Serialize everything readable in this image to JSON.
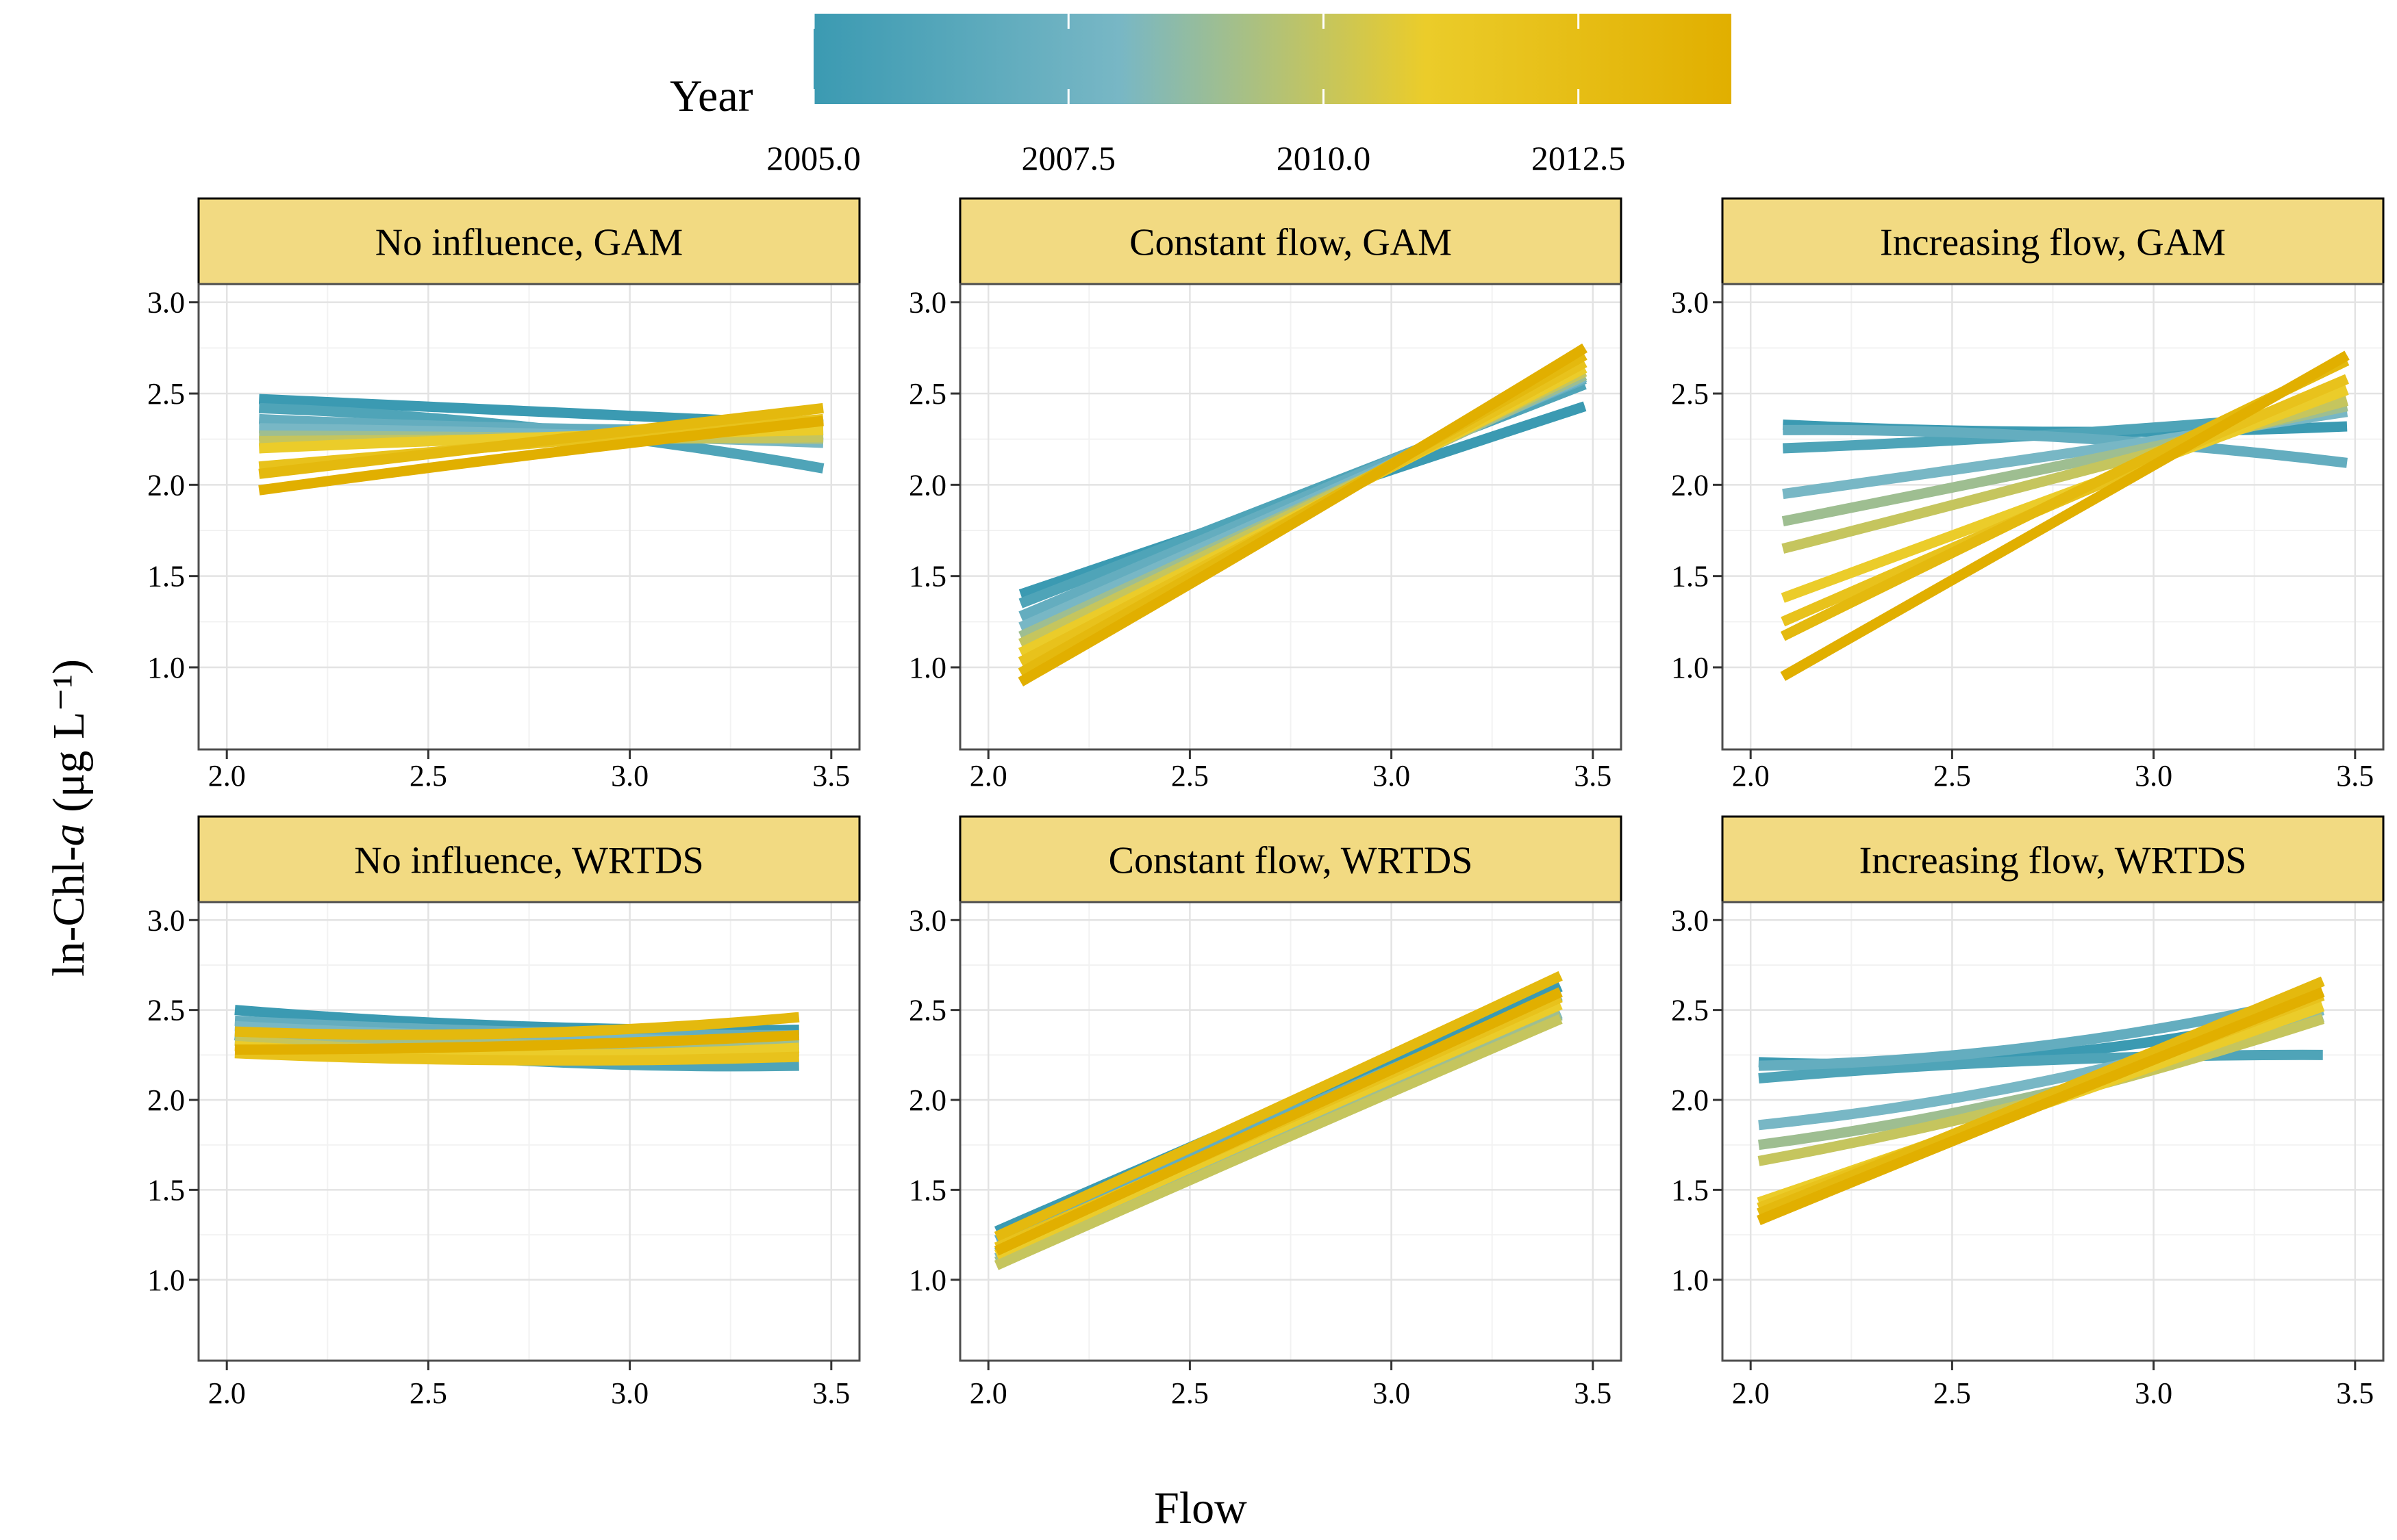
{
  "chart_data": {
    "type": "line",
    "legend": {
      "title": "Year",
      "placement": "top",
      "range": [
        2005,
        2014
      ],
      "ticks": [
        2005.0,
        2007.5,
        2010.0,
        2012.5
      ],
      "tick_labels": [
        "2005.0",
        "2007.5",
        "2010.0",
        "2012.5"
      ],
      "colors": [
        "#3B9AB2",
        "#78B7C5",
        "#EBCC2A",
        "#E1AF00"
      ]
    },
    "xlabel": "Flow",
    "ylabel": "ln-Chl-",
    "ylabel_italic": "a",
    "ylabel_units": " (μg L⁻¹)",
    "xlim": [
      1.93,
      3.57
    ],
    "ylim": [
      0.55,
      3.1
    ],
    "xticks": [
      2.0,
      2.5,
      3.0,
      3.5
    ],
    "xtick_labels": [
      "2.0",
      "2.5",
      "3.0",
      "3.5"
    ],
    "yticks": [
      1.0,
      1.5,
      2.0,
      2.5,
      3.0
    ],
    "ytick_labels": [
      "1.0",
      "1.5",
      "2.0",
      "2.5",
      "3.0"
    ],
    "grid": true,
    "strip_color": "#F2DA82",
    "panels": [
      {
        "title": "No influence, GAM",
        "x": [
          2.08,
          2.78,
          3.48
        ],
        "series": [
          {
            "year": 2005,
            "y": [
              2.47,
              2.4,
              2.33
            ]
          },
          {
            "year": 2006,
            "y": [
              2.42,
              2.31,
              2.09
            ]
          },
          {
            "year": 2007,
            "y": [
              2.36,
              2.31,
              2.3
            ]
          },
          {
            "year": 2008,
            "y": [
              2.31,
              2.28,
              2.23
            ]
          },
          {
            "year": 2009,
            "y": [
              2.27,
              2.26,
              2.25
            ]
          },
          {
            "year": 2010,
            "y": [
              2.24,
              2.25,
              2.26
            ]
          },
          {
            "year": 2011,
            "y": [
              2.2,
              2.26,
              2.3
            ]
          },
          {
            "year": 2012,
            "y": [
              2.1,
              2.23,
              2.36
            ]
          },
          {
            "year": 2013,
            "y": [
              2.06,
              2.24,
              2.42
            ]
          },
          {
            "year": 2014,
            "y": [
              1.97,
              2.17,
              2.35
            ]
          }
        ]
      },
      {
        "title": "Constant flow, GAM",
        "x": [
          2.08,
          2.78,
          3.48
        ],
        "series": [
          {
            "year": 2005,
            "y": [
              1.4,
              1.92,
              2.43
            ]
          },
          {
            "year": 2006,
            "y": [
              1.35,
              1.95,
              2.55
            ]
          },
          {
            "year": 2007,
            "y": [
              1.28,
              1.93,
              2.58
            ]
          },
          {
            "year": 2008,
            "y": [
              1.22,
              1.9,
              2.59
            ]
          },
          {
            "year": 2009,
            "y": [
              1.17,
              1.88,
              2.6
            ]
          },
          {
            "year": 2010,
            "y": [
              1.13,
              1.87,
              2.62
            ]
          },
          {
            "year": 2011,
            "y": [
              1.08,
              1.85,
              2.64
            ]
          },
          {
            "year": 2012,
            "y": [
              1.03,
              1.84,
              2.67
            ]
          },
          {
            "year": 2013,
            "y": [
              0.97,
              1.84,
              2.71
            ]
          },
          {
            "year": 2014,
            "y": [
              0.92,
              1.82,
              2.75
            ]
          }
        ]
      },
      {
        "title": "Increasing flow, GAM",
        "x": [
          2.08,
          2.78,
          3.48
        ],
        "series": [
          {
            "year": 2005,
            "y": [
              2.33,
              2.29,
              2.32
            ]
          },
          {
            "year": 2006,
            "y": [
              2.2,
              2.28,
              2.4
            ]
          },
          {
            "year": 2007,
            "y": [
              2.3,
              2.26,
              2.12
            ]
          },
          {
            "year": 2008,
            "y": [
              1.95,
              2.17,
              2.4
            ]
          },
          {
            "year": 2009,
            "y": [
              1.8,
              2.11,
              2.43
            ]
          },
          {
            "year": 2010,
            "y": [
              1.65,
              2.05,
              2.46
            ]
          },
          {
            "year": 2011,
            "y": [
              1.38,
              1.95,
              2.52
            ]
          },
          {
            "year": 2012,
            "y": [
              1.25,
              1.92,
              2.58
            ]
          },
          {
            "year": 2013,
            "y": [
              1.17,
              1.93,
              2.68
            ]
          },
          {
            "year": 2014,
            "y": [
              0.95,
              1.83,
              2.71
            ]
          }
        ]
      },
      {
        "title": "No influence, WRTDS",
        "x": [
          2.02,
          2.72,
          3.42
        ],
        "series": [
          {
            "year": 2005,
            "y": [
              2.5,
              2.41,
              2.39
            ]
          },
          {
            "year": 2006,
            "y": [
              2.36,
              2.22,
              2.19
            ]
          },
          {
            "year": 2007,
            "y": [
              2.44,
              2.38,
              2.36
            ]
          },
          {
            "year": 2008,
            "y": [
              2.41,
              2.35,
              2.33
            ]
          },
          {
            "year": 2009,
            "y": [
              2.38,
              2.31,
              2.31
            ]
          },
          {
            "year": 2010,
            "y": [
              2.33,
              2.26,
              2.27
            ]
          },
          {
            "year": 2011,
            "y": [
              2.3,
              2.25,
              2.29
            ]
          },
          {
            "year": 2012,
            "y": [
              2.26,
              2.22,
              2.24
            ]
          },
          {
            "year": 2013,
            "y": [
              2.38,
              2.37,
              2.46
            ]
          },
          {
            "year": 2014,
            "y": [
              2.28,
              2.3,
              2.36
            ]
          }
        ]
      },
      {
        "title": "Constant flow, WRTDS",
        "x": [
          2.02,
          2.72,
          3.42
        ],
        "series": [
          {
            "year": 2005,
            "y": [
              1.27,
              1.95,
              2.63
            ]
          },
          {
            "year": 2006,
            "y": [
              1.15,
              1.82,
              2.48
            ]
          },
          {
            "year": 2007,
            "y": [
              1.22,
              1.9,
              2.58
            ]
          },
          {
            "year": 2008,
            "y": [
              1.12,
              1.8,
              2.48
            ]
          },
          {
            "year": 2009,
            "y": [
              1.1,
              1.79,
              2.47
            ]
          },
          {
            "year": 2010,
            "y": [
              1.08,
              1.77,
              2.45
            ]
          },
          {
            "year": 2011,
            "y": [
              1.14,
              1.84,
              2.53
            ]
          },
          {
            "year": 2012,
            "y": [
              1.18,
              1.87,
              2.57
            ]
          },
          {
            "year": 2013,
            "y": [
              1.24,
              1.96,
              2.69
            ]
          },
          {
            "year": 2014,
            "y": [
              1.16,
              1.88,
              2.6
            ]
          }
        ]
      },
      {
        "title": "Increasing flow, WRTDS",
        "x": [
          2.02,
          2.72,
          3.42
        ],
        "series": [
          {
            "year": 2005,
            "y": [
              2.21,
              2.25,
              2.5
            ]
          },
          {
            "year": 2006,
            "y": [
              2.12,
              2.22,
              2.25
            ]
          },
          {
            "year": 2007,
            "y": [
              2.19,
              2.3,
              2.58
            ]
          },
          {
            "year": 2008,
            "y": [
              1.86,
              2.1,
              2.5
            ]
          },
          {
            "year": 2009,
            "y": [
              1.75,
              2.03,
              2.46
            ]
          },
          {
            "year": 2010,
            "y": [
              1.66,
              2.0,
              2.45
            ]
          },
          {
            "year": 2011,
            "y": [
              1.43,
              1.97,
              2.52
            ]
          },
          {
            "year": 2012,
            "y": [
              1.4,
              1.99,
              2.58
            ]
          },
          {
            "year": 2013,
            "y": [
              1.37,
              2.01,
              2.66
            ]
          },
          {
            "year": 2014,
            "y": [
              1.33,
              1.97,
              2.6
            ]
          }
        ]
      }
    ]
  }
}
